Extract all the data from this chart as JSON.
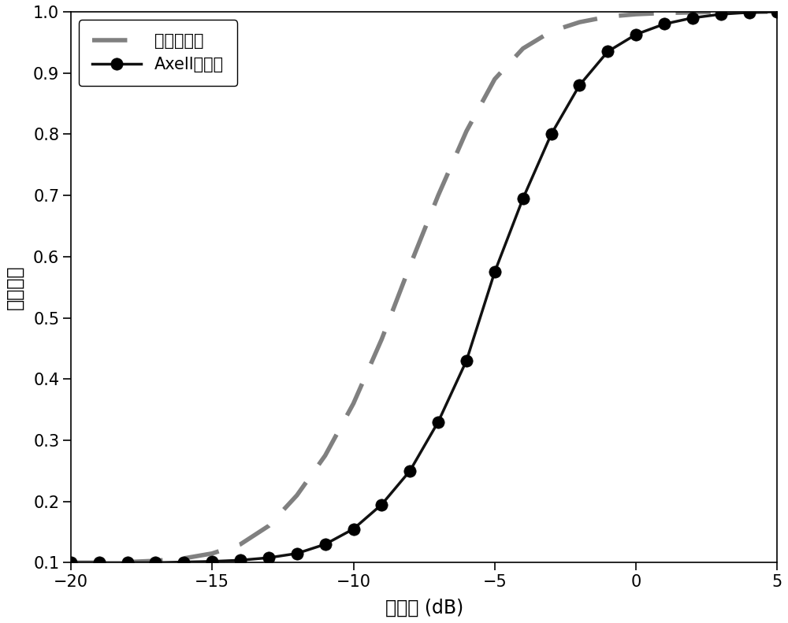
{
  "title": "",
  "xlabel": "信噪比 (dB)",
  "ylabel": "检测概率",
  "xlim": [
    -20,
    5
  ],
  "ylim": [
    0.1,
    1.0
  ],
  "yticks": [
    0.1,
    0.2,
    0.3,
    0.4,
    0.5,
    0.6,
    0.7,
    0.8,
    0.9,
    1.0
  ],
  "xticks": [
    -20,
    -15,
    -10,
    -5,
    0,
    5
  ],
  "legend1_label": "Axell的方法",
  "legend2_label": "本发明方法",
  "line1_color": "#111111",
  "line2_color": "#808080",
  "background_color": "#ffffff",
  "snr_points": [
    -20,
    -19,
    -18,
    -17,
    -16,
    -15,
    -14,
    -13,
    -12,
    -11,
    -10,
    -9,
    -8,
    -7,
    -6,
    -5,
    -4,
    -3,
    -2,
    -1,
    0,
    1,
    2,
    3,
    4,
    5
  ],
  "axell_pd": [
    0.1,
    0.1,
    0.1,
    0.1,
    0.101,
    0.102,
    0.104,
    0.108,
    0.115,
    0.13,
    0.155,
    0.195,
    0.25,
    0.33,
    0.43,
    0.575,
    0.695,
    0.8,
    0.88,
    0.935,
    0.963,
    0.98,
    0.99,
    0.996,
    0.999,
    1.0
  ],
  "proposed_pd": [
    0.1,
    0.1,
    0.101,
    0.103,
    0.107,
    0.115,
    0.13,
    0.16,
    0.21,
    0.275,
    0.36,
    0.465,
    0.585,
    0.7,
    0.805,
    0.89,
    0.94,
    0.968,
    0.983,
    0.992,
    0.996,
    0.998,
    0.999,
    1.0,
    1.0,
    1.0
  ]
}
